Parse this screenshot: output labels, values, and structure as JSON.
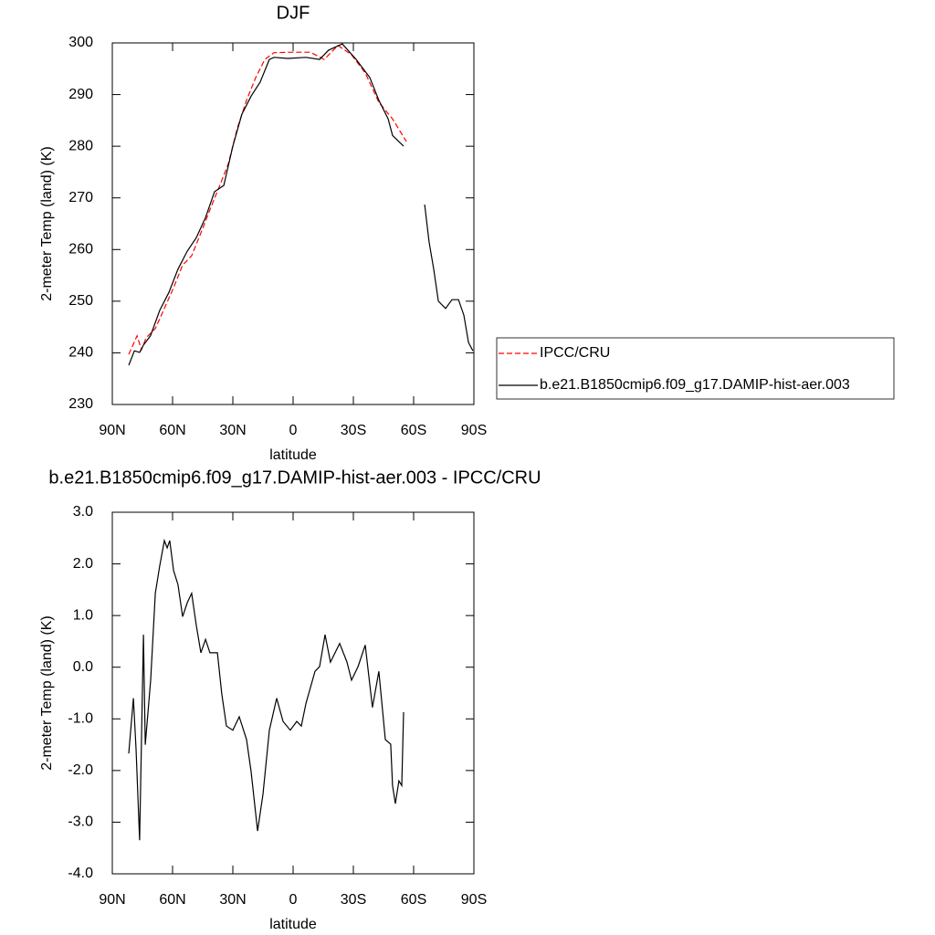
{
  "chart_data": [
    {
      "type": "line",
      "title": "DJF",
      "xlabel": "latitude",
      "ylabel": "2-meter Temp (land) (K)",
      "xlim": [
        90,
        -90
      ],
      "ylim": [
        230,
        300
      ],
      "xticks": [
        {
          "value": 90,
          "label": "90N"
        },
        {
          "value": 60,
          "label": "60N"
        },
        {
          "value": 30,
          "label": "30N"
        },
        0,
        {
          "value": -30,
          "label": "30S"
        },
        {
          "value": -60,
          "label": "60S"
        },
        {
          "value": -90,
          "label": "90S"
        }
      ],
      "yticks": [
        230,
        240,
        250,
        260,
        270,
        280,
        290,
        300
      ],
      "legend": "outside-right",
      "series": [
        {
          "name": "IPCC/CRU",
          "color": "#ff0000",
          "dash": true,
          "x": [
            81.8,
            77.7,
            75.5,
            73.2,
            68.6,
            64.1,
            59.5,
            55,
            50.5,
            45.9,
            41.4,
            36.8,
            32.3,
            27.7,
            23.2,
            18.6,
            14.1,
            9.5,
            0.5,
            -8.6,
            -15.5,
            -22.3,
            -29.1,
            -35.9,
            -42.7,
            -49.5,
            -56.4
          ],
          "values": [
            239.7,
            243.3,
            240.6,
            242.9,
            244.7,
            248.6,
            252.6,
            257,
            258.8,
            263.2,
            267.7,
            272.1,
            276.5,
            283.6,
            288.9,
            293.3,
            296.8,
            298.1,
            298.2,
            298.2,
            296.8,
            299.5,
            297.7,
            294.2,
            288.5,
            285.3,
            280.9
          ]
        },
        {
          "name": "b.e21.B1850cmip6.f09_g17.DAMIP-hist-aer.003",
          "color": "#000000",
          "dash": false,
          "x": [
            81.8,
            79,
            76.4,
            74.5,
            71,
            66.4,
            61.8,
            57.3,
            52.7,
            48.2,
            43.6,
            39.1,
            34.5,
            30,
            25.5,
            20.9,
            16.4,
            11.8,
            9.5,
            2.7,
            -6.4,
            -13.2,
            -17.7,
            -24.5,
            -31.4,
            -38.2,
            -42.7,
            -47.3,
            -49.5,
            -55,
            -60,
            -65.5,
            -67.7,
            -70,
            -72.3,
            -75.9,
            -79.1,
            -82.3,
            -85,
            -87.3,
            -89.5
          ],
          "values": [
            237.6,
            240.4,
            240.1,
            241.5,
            243.3,
            248.2,
            251.7,
            256.2,
            259.7,
            262.3,
            266.2,
            271.2,
            272.4,
            280,
            286.2,
            289.7,
            292.4,
            296.8,
            297.2,
            297,
            297.2,
            296.8,
            298.6,
            299.8,
            296.8,
            293.3,
            288.9,
            285.3,
            282.1,
            280,
            null,
            268.7,
            261.5,
            256.2,
            250,
            248.6,
            250.3,
            250.3,
            247.3,
            242,
            240.4
          ]
        }
      ]
    },
    {
      "type": "line",
      "title": "b.e21.B1850cmip6.f09_g17.DAMIP-hist-aer.003 - IPCC/CRU",
      "xlabel": "latitude",
      "ylabel": "2-meter Temp (land) (K)",
      "xlim": [
        90,
        -90
      ],
      "ylim": [
        -4,
        3
      ],
      "xticks": [
        {
          "value": 90,
          "label": "90N"
        },
        {
          "value": 60,
          "label": "60N"
        },
        {
          "value": 30,
          "label": "30N"
        },
        0,
        {
          "value": -30,
          "label": "30S"
        },
        {
          "value": -60,
          "label": "60S"
        },
        {
          "value": -90,
          "label": "90S"
        }
      ],
      "yticks": [
        {
          "value": -4,
          "label": "-4.0"
        },
        {
          "value": -3,
          "label": "-3.0"
        },
        {
          "value": -2,
          "label": "-2.0"
        },
        {
          "value": -1,
          "label": "-1.0"
        },
        {
          "value": 0,
          "label": "0.0"
        },
        {
          "value": 1,
          "label": "1.0"
        },
        {
          "value": 2,
          "label": "2.0"
        },
        {
          "value": 3,
          "label": "3.0"
        }
      ],
      "series": [
        {
          "color": "#000000",
          "dash": false,
          "x": [
            81.8,
            79.5,
            78.2,
            76.4,
            74.5,
            73.6,
            70.9,
            68.6,
            66.4,
            64.1,
            62.7,
            61.4,
            59.5,
            57.3,
            55,
            52.7,
            50.5,
            48.2,
            45.9,
            43.6,
            41.4,
            37.7,
            35.5,
            33.2,
            30,
            26.8,
            23.2,
            20.9,
            17.7,
            15,
            11.8,
            8.2,
            5,
            1.4,
            -1.8,
            -4.1,
            -6.4,
            -10.9,
            -13.2,
            -15.9,
            -18.6,
            -23.2,
            -26.8,
            -29.1,
            -32.3,
            -35.9,
            -39.5,
            -42.7,
            -45.9,
            -48.6,
            -49.5,
            -50.9,
            -52.7,
            -54.1,
            -55
          ],
          "values": [
            -1.67,
            -0.6,
            -1.58,
            -3.35,
            0.63,
            -1.5,
            -0.25,
            1.43,
            1.96,
            2.45,
            2.31,
            2.45,
            1.87,
            1.6,
            0.98,
            1.25,
            1.43,
            0.81,
            0.28,
            0.54,
            0.28,
            0.28,
            -0.52,
            -1.14,
            -1.22,
            -0.96,
            -1.4,
            -2.02,
            -3.17,
            -2.46,
            -1.22,
            -0.6,
            -1.05,
            -1.22,
            -1.05,
            -1.14,
            -0.7,
            -0.08,
            0.01,
            0.63,
            0.1,
            0.46,
            0.1,
            -0.25,
            0.01,
            0.43,
            -0.78,
            -0.08,
            -1.4,
            -1.49,
            -2.29,
            -2.64,
            -2.2,
            -2.29,
            -0.87
          ]
        }
      ]
    }
  ]
}
